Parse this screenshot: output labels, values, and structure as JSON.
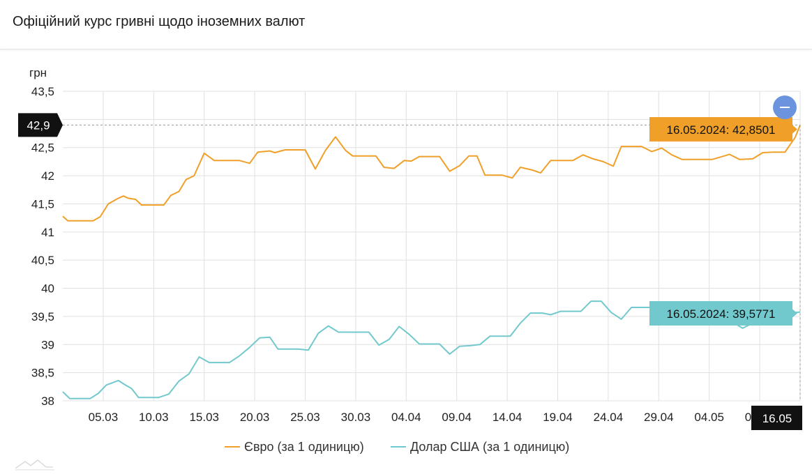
{
  "header": {
    "title": "Офіційний курс гривні щодо іноземних валют"
  },
  "colors": {
    "euro": "#f0a028",
    "usd": "#72c9cd",
    "grid": "#e0e0e0",
    "crosshair_label_bg": "#111111",
    "zoom_button": "#6b93de"
  },
  "icons": {
    "zoom": "minus-icon",
    "logo": "mountain-logo-icon"
  },
  "crosshair": {
    "y_label": "42,9",
    "x_label": "16.05"
  },
  "tooltips": {
    "euro": "16.05.2024: 42,8501",
    "usd": "16.05.2024: 39,5771"
  },
  "chart_data": {
    "type": "line",
    "ylabel": "грн",
    "ylim": [
      38,
      43.5
    ],
    "yticks": [
      "43,5",
      "43",
      "42,5",
      "42",
      "41,5",
      "41",
      "40,5",
      "40",
      "39,5",
      "39",
      "38,5",
      "38"
    ],
    "xticks": [
      "05.03",
      "10.03",
      "15.03",
      "20.03",
      "25.03",
      "30.03",
      "04.04",
      "09.04",
      "14.04",
      "19.04",
      "24.04",
      "29.04",
      "04.05",
      "09.05",
      "16.05"
    ],
    "x_start": "01.03.2024",
    "x_end": "16.05.2024",
    "grid": true,
    "legend_position": "bottom",
    "series": [
      {
        "name": "Євро (за 1 одиницю)",
        "points": [
          [
            0,
            41.28
          ],
          [
            0.5,
            41.2
          ],
          [
            3,
            41.2
          ],
          [
            3.7,
            41.27
          ],
          [
            4.5,
            41.5
          ],
          [
            5.5,
            41.6
          ],
          [
            6,
            41.64
          ],
          [
            6.5,
            41.6
          ],
          [
            7.2,
            41.58
          ],
          [
            7.8,
            41.48
          ],
          [
            10,
            41.48
          ],
          [
            10.7,
            41.65
          ],
          [
            11.5,
            41.72
          ],
          [
            12.2,
            41.93
          ],
          [
            13,
            42.0
          ],
          [
            14,
            42.4
          ],
          [
            15,
            42.27
          ],
          [
            17.5,
            42.27
          ],
          [
            18.5,
            42.22
          ],
          [
            19.3,
            42.42
          ],
          [
            20.5,
            42.44
          ],
          [
            21,
            42.41
          ],
          [
            22,
            42.46
          ],
          [
            24,
            42.46
          ],
          [
            25,
            42.12
          ],
          [
            26,
            42.45
          ],
          [
            27,
            42.69
          ],
          [
            28,
            42.45
          ],
          [
            28.7,
            42.35
          ],
          [
            31,
            42.35
          ],
          [
            31.8,
            42.15
          ],
          [
            32.8,
            42.13
          ],
          [
            33.8,
            42.27
          ],
          [
            34.5,
            42.26
          ],
          [
            35.3,
            42.34
          ],
          [
            37.3,
            42.34
          ],
          [
            38.3,
            42.08
          ],
          [
            39.3,
            42.18
          ],
          [
            40.2,
            42.35
          ],
          [
            41,
            42.35
          ],
          [
            41.8,
            42.01
          ],
          [
            43.5,
            42.01
          ],
          [
            44.5,
            41.96
          ],
          [
            45.3,
            42.15
          ],
          [
            46.5,
            42.1
          ],
          [
            47.3,
            42.05
          ],
          [
            48.3,
            42.27
          ],
          [
            50.5,
            42.27
          ],
          [
            51.5,
            42.37
          ],
          [
            52.5,
            42.3
          ],
          [
            53.5,
            42.25
          ],
          [
            54.5,
            42.17
          ],
          [
            55.3,
            42.52
          ],
          [
            57.3,
            42.52
          ],
          [
            58.3,
            42.43
          ],
          [
            59.3,
            42.49
          ],
          [
            60.3,
            42.37
          ],
          [
            61.3,
            42.29
          ],
          [
            64.3,
            42.29
          ],
          [
            65.3,
            42.34
          ],
          [
            66,
            42.38
          ],
          [
            67,
            42.29
          ],
          [
            68.3,
            42.3
          ],
          [
            69.3,
            42.41
          ],
          [
            70.3,
            42.42
          ],
          [
            71.5,
            42.42
          ],
          [
            72.5,
            42.68
          ],
          [
            73,
            42.9
          ]
        ]
      },
      {
        "name": "Долар США (за 1 одиницю)",
        "points": [
          [
            0,
            38.16
          ],
          [
            0.7,
            38.04
          ],
          [
            2.7,
            38.04
          ],
          [
            3.5,
            38.13
          ],
          [
            4.3,
            38.28
          ],
          [
            5.5,
            38.36
          ],
          [
            6.2,
            38.28
          ],
          [
            6.8,
            38.22
          ],
          [
            7.5,
            38.06
          ],
          [
            9.5,
            38.06
          ],
          [
            10.5,
            38.12
          ],
          [
            11.5,
            38.35
          ],
          [
            12.5,
            38.48
          ],
          [
            13.5,
            38.78
          ],
          [
            14.5,
            38.68
          ],
          [
            16.5,
            38.68
          ],
          [
            17.5,
            38.8
          ],
          [
            18.5,
            38.95
          ],
          [
            19.5,
            39.12
          ],
          [
            20.5,
            39.13
          ],
          [
            21.3,
            38.92
          ],
          [
            23.3,
            38.92
          ],
          [
            24.3,
            38.9
          ],
          [
            25.3,
            39.2
          ],
          [
            26.3,
            39.33
          ],
          [
            27.3,
            39.22
          ],
          [
            30.3,
            39.22
          ],
          [
            31.3,
            38.99
          ],
          [
            32.3,
            39.09
          ],
          [
            33.3,
            39.32
          ],
          [
            34.3,
            39.18
          ],
          [
            35.3,
            39.01
          ],
          [
            37.3,
            39.01
          ],
          [
            38.3,
            38.83
          ],
          [
            39.3,
            38.97
          ],
          [
            40.3,
            38.98
          ],
          [
            41.3,
            39.0
          ],
          [
            42.3,
            39.15
          ],
          [
            44.3,
            39.15
          ],
          [
            45.3,
            39.38
          ],
          [
            46.3,
            39.56
          ],
          [
            47.5,
            39.56
          ],
          [
            48.3,
            39.53
          ],
          [
            49.3,
            39.59
          ],
          [
            51.3,
            39.59
          ],
          [
            52.3,
            39.77
          ],
          [
            53.3,
            39.77
          ],
          [
            54.3,
            39.57
          ],
          [
            55.3,
            39.45
          ],
          [
            56.3,
            39.66
          ],
          [
            58.3,
            39.66
          ],
          [
            59.3,
            39.6
          ],
          [
            60.3,
            39.67
          ],
          [
            61.3,
            39.6
          ],
          [
            66.3,
            39.4
          ],
          [
            67.3,
            39.29
          ],
          [
            68.3,
            39.38
          ],
          [
            69.3,
            39.5
          ],
          [
            70.3,
            39.57
          ],
          [
            71.5,
            39.57
          ],
          [
            72.5,
            39.57
          ],
          [
            73,
            39.5771
          ]
        ]
      }
    ]
  }
}
